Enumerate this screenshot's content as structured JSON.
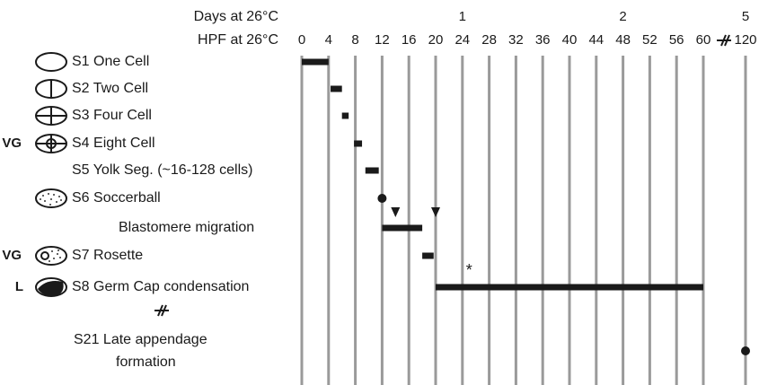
{
  "chart_data": {
    "type": "gantt",
    "day_axis_label": "Days at 26°C",
    "x_axis_label": "HPF at 26°C",
    "day_ticks": [
      {
        "value": 24,
        "label": "1"
      },
      {
        "value": 48,
        "label": "2"
      },
      {
        "value": 120,
        "label": "5"
      }
    ],
    "xlim": [
      0,
      120
    ],
    "axis_break": [
      60,
      120
    ],
    "xticks": [
      0,
      4,
      8,
      12,
      16,
      20,
      24,
      28,
      32,
      36,
      40,
      44,
      48,
      52,
      56,
      60,
      120
    ],
    "grid": true,
    "grid_color": "#9a9a9a",
    "bar_color": "#1a1a1a",
    "rows": [
      {
        "label": "S1 One Cell",
        "start": 0,
        "end": 4
      },
      {
        "label": "S2 Two Cell",
        "start": 4.3,
        "end": 6
      },
      {
        "label": "S3 Four Cell",
        "start": 6,
        "end": 7
      },
      {
        "label": "S4 Eight Cell",
        "start": 7.8,
        "end": 9,
        "prefix": "VG"
      },
      {
        "label": "S5 Yolk Seg. (~16-128 cells)",
        "start": 9.5,
        "end": 11.5
      },
      {
        "label": "S6 Soccerball",
        "dot": 12
      },
      {
        "label": "Blastomere migration",
        "start": 12,
        "end": 18,
        "triangles": [
          14,
          20
        ]
      },
      {
        "label": "S7 Rosette",
        "start": 18,
        "end": 19.7,
        "prefix": "VG"
      },
      {
        "label": "S8 Germ Cap condensation",
        "start": 20,
        "end": 60,
        "prefix": "L",
        "annotation": {
          "x": 25,
          "text": "*"
        }
      },
      {
        "label_lines": [
          "S21 Late appendage",
          "formation"
        ],
        "dot": 120
      }
    ]
  }
}
